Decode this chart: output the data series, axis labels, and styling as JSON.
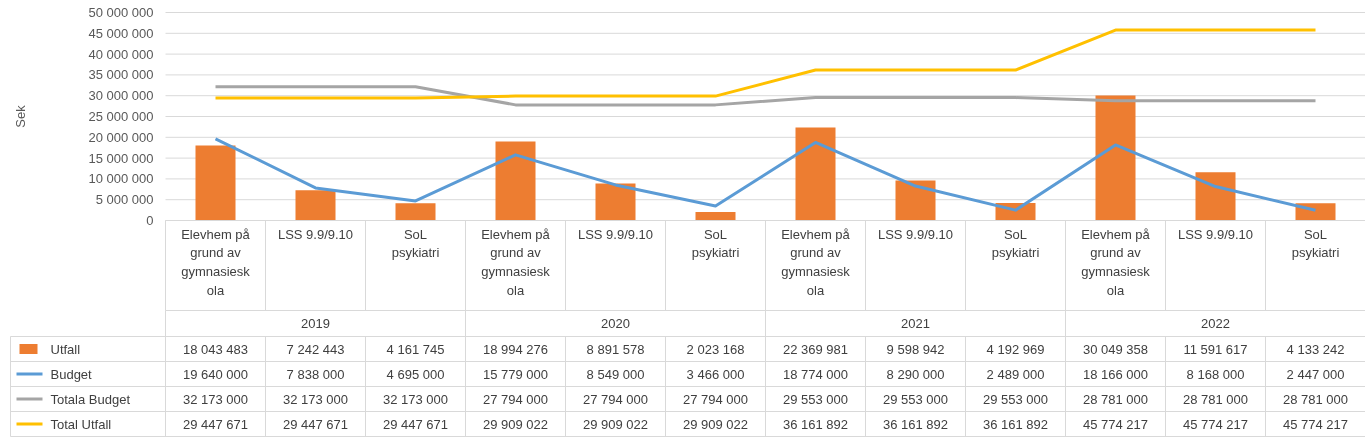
{
  "chart_data": {
    "type": "bar",
    "ylabel": "Sek",
    "categories": [
      "Elevhem på grund av gymnasieskola",
      "LSS 9.9/9.10",
      "SoL psykiatri",
      "Elevhem på grund av gymnasieskola",
      "LSS 9.9/9.10",
      "SoL psykiatri",
      "Elevhem på grund av gymnasieskola",
      "LSS 9.9/9.10",
      "SoL psykiatri",
      "Elevhem på grund av gymnasieskola",
      "LSS 9.9/9.10",
      "SoL psykiatri"
    ],
    "annotations": [
      "2019",
      "2020",
      "2021",
      "2022"
    ],
    "series": [
      {
        "name": "Utfall",
        "color": "#ed7d31",
        "values": [
          18043483,
          7242443,
          4161745,
          18994276,
          8891578,
          2023168,
          22369981,
          9598942,
          4192969,
          30049358,
          11591617,
          4133242
        ]
      },
      {
        "name": "Budget",
        "type": "line",
        "color": "#5b9bd5",
        "values": [
          19640000,
          7838000,
          4695000,
          15779000,
          8549000,
          3466000,
          18774000,
          8290000,
          2489000,
          18166000,
          8168000,
          2447000
        ]
      },
      {
        "name": "Totala Budget",
        "type": "line",
        "color": "#a5a5a5",
        "values": [
          32173000,
          32173000,
          32173000,
          27794000,
          27794000,
          27794000,
          29553000,
          29553000,
          29553000,
          28781000,
          28781000,
          28781000
        ]
      },
      {
        "name": "Total Utfall",
        "type": "line",
        "color": "#ffc000",
        "values": [
          29447671,
          29447671,
          29447671,
          29909022,
          29909022,
          29909022,
          36161892,
          36161892,
          36161892,
          45774217,
          45774217,
          45774217
        ]
      }
    ],
    "ylim": [
      0,
      50000000
    ],
    "yticks": [
      {
        "value": 0,
        "label": "0"
      },
      {
        "value": 5000000,
        "label": "5 000 000"
      },
      {
        "value": 10000000,
        "label": "10 000 000"
      },
      {
        "value": 15000000,
        "label": "15 000 000"
      },
      {
        "value": 20000000,
        "label": "20 000 000"
      },
      {
        "value": 25000000,
        "label": "25 000 000"
      },
      {
        "value": 30000000,
        "label": "30 000 000"
      },
      {
        "value": 35000000,
        "label": "35 000 000"
      },
      {
        "value": 40000000,
        "label": "40 000 000"
      },
      {
        "value": 45000000,
        "label": "45 000 000"
      },
      {
        "value": 50000000,
        "label": "50 000 000"
      }
    ],
    "grid": "y",
    "legend": "bottom",
    "data_labels": true
  }
}
